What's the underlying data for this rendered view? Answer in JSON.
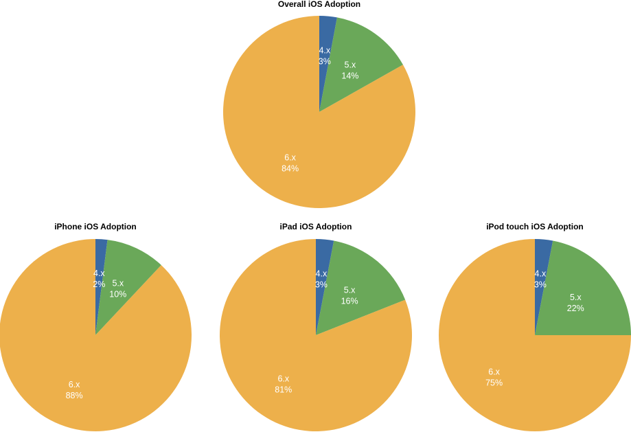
{
  "colors": {
    "4.x": "#3a6aa3",
    "5.x": "#6aa859",
    "6.x": "#edb04b",
    "label_text": "#ffffff",
    "title_text": "#000000"
  },
  "chart_data": [
    {
      "type": "pie",
      "title": "Overall iOS Adoption",
      "slices": [
        {
          "label": "4.x",
          "value": 3,
          "display": "3%"
        },
        {
          "label": "5.x",
          "value": 14,
          "display": "14%"
        },
        {
          "label": "6.x",
          "value": 84,
          "display": "84%"
        }
      ]
    },
    {
      "type": "pie",
      "title": "iPhone iOS Adoption",
      "slices": [
        {
          "label": "4.x",
          "value": 2,
          "display": "2%"
        },
        {
          "label": "5.x",
          "value": 10,
          "display": "10%"
        },
        {
          "label": "6.x",
          "value": 88,
          "display": "88%"
        }
      ]
    },
    {
      "type": "pie",
      "title": "iPad iOS Adoption",
      "slices": [
        {
          "label": "4.x",
          "value": 3,
          "display": "3%"
        },
        {
          "label": "5.x",
          "value": 16,
          "display": "16%"
        },
        {
          "label": "6.x",
          "value": 81,
          "display": "81%"
        }
      ]
    },
    {
      "type": "pie",
      "title": "iPod touch iOS Adoption",
      "slices": [
        {
          "label": "4.x",
          "value": 3,
          "display": "3%"
        },
        {
          "label": "5.x",
          "value": 22,
          "display": "22%"
        },
        {
          "label": "6.x",
          "value": 75,
          "display": "75%"
        }
      ]
    }
  ]
}
